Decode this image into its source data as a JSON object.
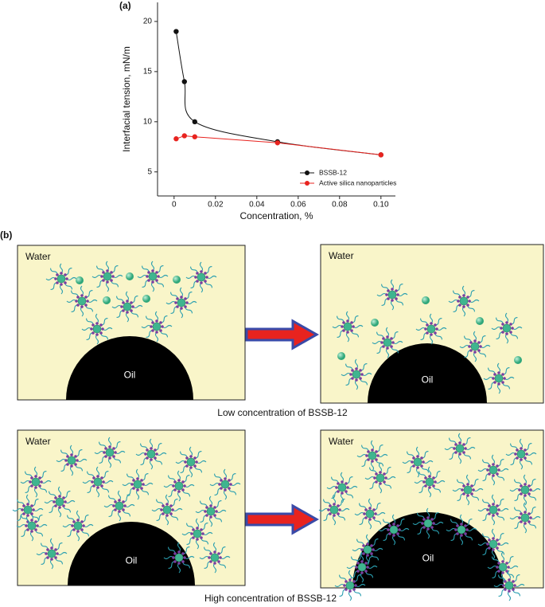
{
  "chart_data": {
    "type": "line",
    "panel_label": "(a)",
    "xlabel": "Concentration, %",
    "ylabel": "Interfacial tension, mN/m",
    "xlim": [
      -0.008,
      0.107
    ],
    "ylim": [
      2.6,
      21.9
    ],
    "xticks": [
      0,
      0.02,
      0.04,
      0.06,
      0.08,
      {
        "value": 0.1,
        "label": "0.10"
      }
    ],
    "yticks": [
      5,
      10,
      15,
      20
    ],
    "legend": "lower right",
    "series": [
      {
        "name": "BSSB-12",
        "color": "#111111",
        "smooth": true,
        "x": [
          0.001,
          0.005,
          0.01,
          0.05,
          0.1
        ],
        "values": [
          19,
          14,
          10,
          8,
          6.7
        ]
      },
      {
        "name": "Active silica nanoparticles",
        "color": "#e8231f",
        "smooth": false,
        "x": [
          0.001,
          0.005,
          0.01,
          0.05,
          0.1
        ],
        "values": [
          8.3,
          8.6,
          8.5,
          7.9,
          6.7
        ]
      }
    ]
  },
  "diagram": {
    "panel_label": "(b)",
    "panels": [
      {
        "water": "Water",
        "oil": "Oil"
      },
      {
        "water": "Water",
        "oil": "Oil"
      },
      {
        "water": "Water",
        "oil": "Oil"
      },
      {
        "water": "Water",
        "oil": "Oil"
      }
    ],
    "captions": [
      "Low concentration of BSSB-12",
      "High concentration of BSSB-12"
    ]
  }
}
